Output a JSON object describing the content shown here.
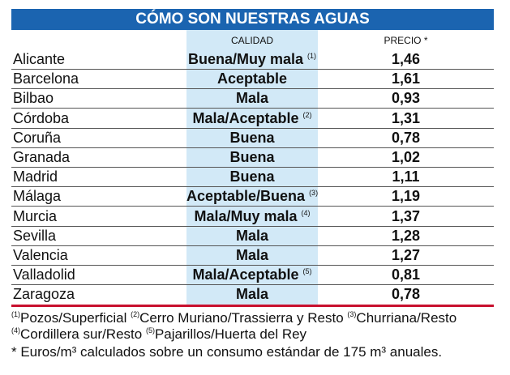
{
  "header": {
    "title": "CÓMO SON NUESTRAS AGUAS"
  },
  "table": {
    "columns": [
      "CALIDAD",
      "PRECIO *"
    ],
    "rows": [
      {
        "city": "Alicante",
        "quality": "Buena/Muy mala",
        "note": "(1)",
        "price": "1,46"
      },
      {
        "city": "Barcelona",
        "quality": "Aceptable",
        "price": "1,61"
      },
      {
        "city": "Bilbao",
        "quality": "Mala",
        "price": "0,93"
      },
      {
        "city": "Córdoba",
        "quality": "Mala/Aceptable",
        "note": "(2)",
        "price": "1,31"
      },
      {
        "city": "Coruña",
        "quality": "Buena",
        "price": "0,78"
      },
      {
        "city": "Granada",
        "quality": "Buena",
        "price": "1,02"
      },
      {
        "city": "Madrid",
        "quality": "Buena",
        "price": "1,11"
      },
      {
        "city": "Málaga",
        "quality": "Aceptable/Buena",
        "note": "(3)",
        "price": "1,19"
      },
      {
        "city": "Murcia",
        "quality": "Mala/Muy mala",
        "note": "(4)",
        "price": "1,37"
      },
      {
        "city": "Sevilla",
        "quality": "Mala",
        "price": "1,28"
      },
      {
        "city": "Valencia",
        "quality": "Mala",
        "price": "1,27"
      },
      {
        "city": "Valladolid",
        "quality": "Mala/Aceptable",
        "note": "(5)",
        "price": "0,81"
      },
      {
        "city": "Zaragoza",
        "quality": "Mala",
        "price": "0,78"
      }
    ]
  },
  "footnotes": {
    "lines": [
      [
        {
          "mark": "(1)",
          "text": "Pozos/Superficial"
        },
        {
          "mark": "(2)",
          "text": "Cerro Muriano/Trassierra y Resto"
        },
        {
          "mark": "(3)",
          "text": "Churriana/Resto"
        }
      ],
      [
        {
          "mark": "(4)",
          "text": "Cordillera sur/Resto"
        },
        {
          "mark": "(5)",
          "text": "Pajarillos/Huerta del Rey"
        }
      ]
    ],
    "note": "* Euros/m³ calculados sobre un consumo estándar de 175 m³ anuales."
  }
}
